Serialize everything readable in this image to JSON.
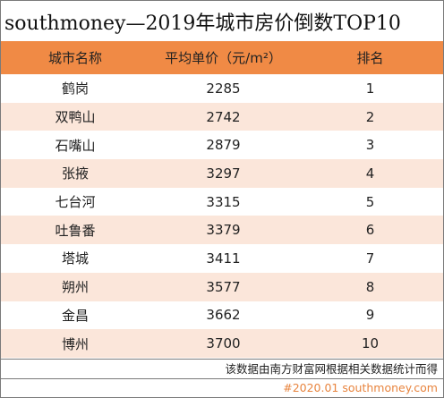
{
  "title": "southmoney—2019年城市房价倒数TOP10",
  "table": {
    "headers": [
      "城市名称",
      "平均单价（元/m²）",
      "排名"
    ],
    "rows": [
      {
        "city": "鹤岗",
        "price": "2285",
        "rank": "1"
      },
      {
        "city": "双鸭山",
        "price": "2742",
        "rank": "2"
      },
      {
        "city": "石嘴山",
        "price": "2879",
        "rank": "3"
      },
      {
        "city": "张掖",
        "price": "3297",
        "rank": "4"
      },
      {
        "city": "七台河",
        "price": "3315",
        "rank": "5"
      },
      {
        "city": "吐鲁番",
        "price": "3379",
        "rank": "6"
      },
      {
        "city": "塔城",
        "price": "3411",
        "rank": "7"
      },
      {
        "city": "朔州",
        "price": "3577",
        "rank": "8"
      },
      {
        "city": "金昌",
        "price": "3662",
        "rank": "9"
      },
      {
        "city": "博州",
        "price": "3700",
        "rank": "10"
      }
    ]
  },
  "note": "该数据由南方财富网根据相关数据统计而得",
  "footer": "#2020.01 southmoney.com",
  "colors": {
    "header_bg": "#f08a45",
    "stripe_bg": "#fbe6da",
    "footer_text": "#e8843e"
  }
}
